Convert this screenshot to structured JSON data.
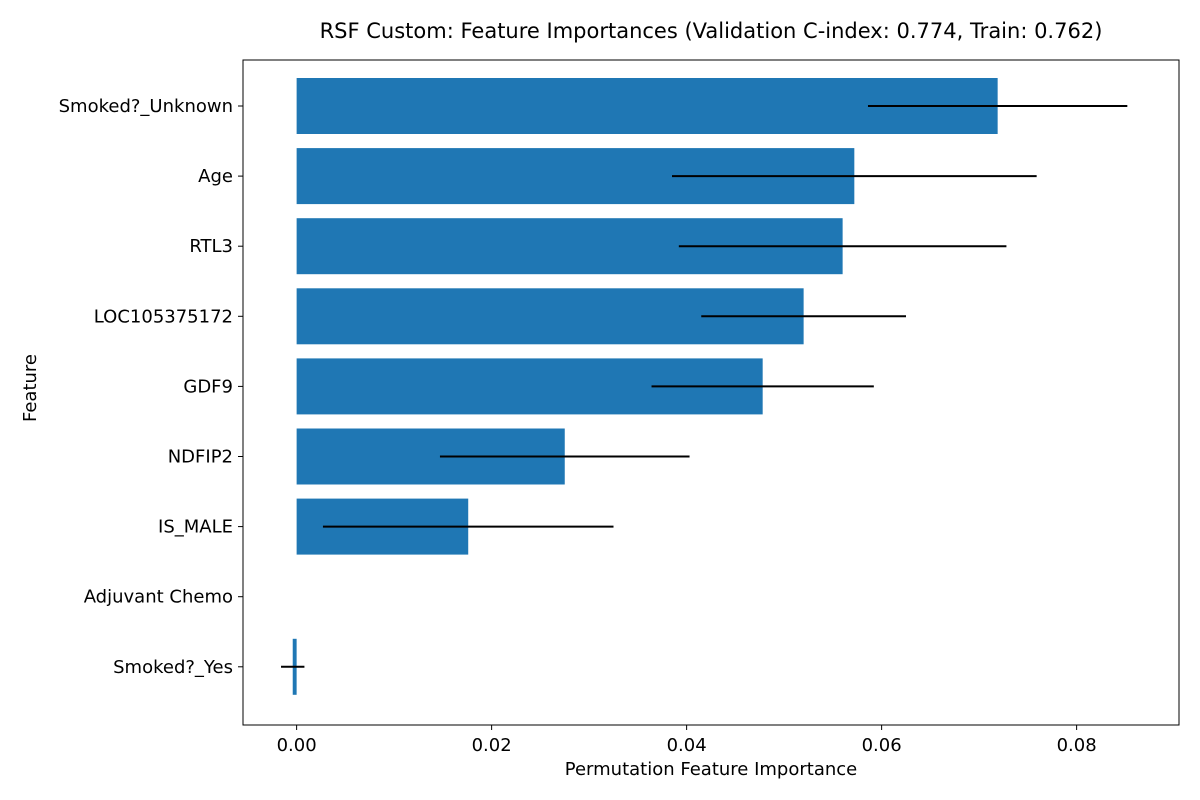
{
  "chart_data": {
    "type": "bar",
    "orientation": "horizontal",
    "title": "RSF Custom: Feature Importances (Validation C-index: 0.774, Train: 0.762)",
    "xlabel": "Permutation Feature Importance",
    "ylabel": "Feature",
    "xlim": [
      -0.0055,
      0.0905
    ],
    "xticks": [
      0.0,
      0.02,
      0.04,
      0.06,
      0.08
    ],
    "xtick_labels": [
      "0.00",
      "0.02",
      "0.04",
      "0.06",
      "0.08"
    ],
    "categories": [
      "Smoked?_Unknown",
      "Age",
      "RTL3",
      "LOC105375172",
      "GDF9",
      "NDFIP2",
      "IS_MALE",
      "Adjuvant Chemo",
      "Smoked?_Yes"
    ],
    "values": [
      0.0719,
      0.0572,
      0.056,
      0.052,
      0.0478,
      0.0275,
      0.0176,
      0.0,
      -0.0004
    ],
    "errors": [
      0.0133,
      0.0187,
      0.0168,
      0.0105,
      0.0114,
      0.0128,
      0.0149,
      0.0,
      0.0012
    ],
    "bar_color": "#1f77b4",
    "error_color": "#000000",
    "grid": false,
    "legend": "none"
  }
}
